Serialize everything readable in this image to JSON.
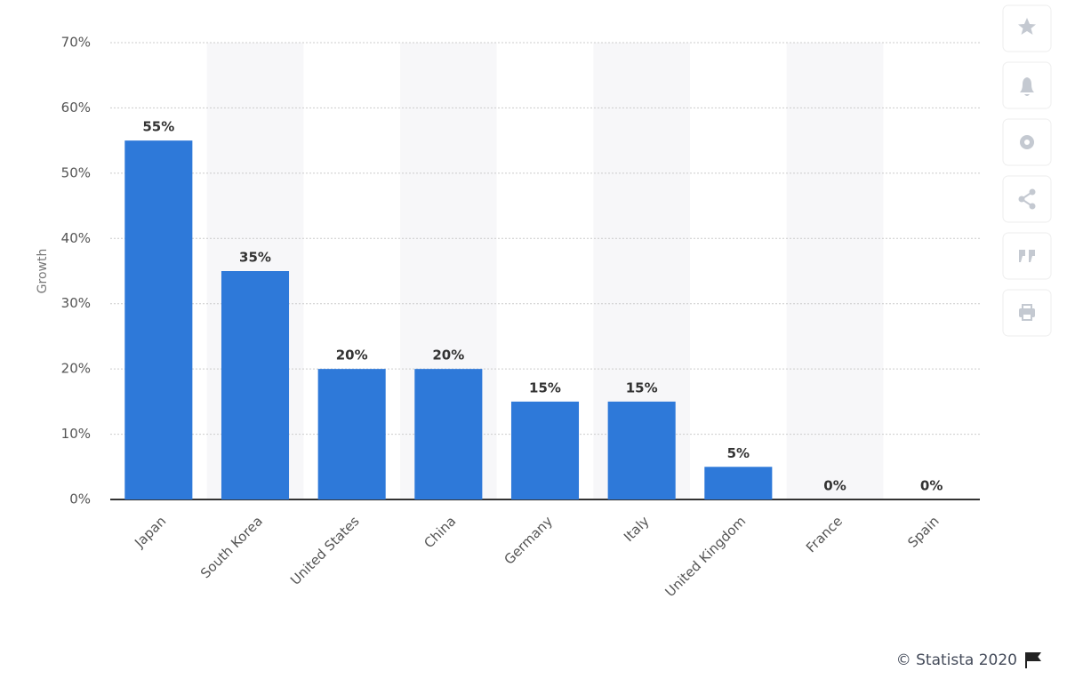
{
  "chart_data": {
    "type": "bar",
    "y_label": "Growth",
    "categories": [
      "Japan",
      "South Korea",
      "United States",
      "China",
      "Germany",
      "Italy",
      "United Kingdom",
      "France",
      "Spain"
    ],
    "values": [
      55,
      35,
      20,
      20,
      15,
      15,
      5,
      0,
      0
    ],
    "value_labels": [
      "55%",
      "35%",
      "20%",
      "20%",
      "15%",
      "15%",
      "5%",
      "0%",
      "0%"
    ],
    "color": "#2e79d9",
    "ylim": [
      0,
      70
    ],
    "yticks": [
      {
        "value": 0,
        "label": "0%"
      },
      {
        "value": 10,
        "label": "10%"
      },
      {
        "value": 20,
        "label": "20%"
      },
      {
        "value": 30,
        "label": "30%"
      },
      {
        "value": 40,
        "label": "40%"
      },
      {
        "value": 50,
        "label": "50%"
      },
      {
        "value": 60,
        "label": "60%"
      },
      {
        "value": 70,
        "label": "70%"
      }
    ],
    "grid": true,
    "credit": "© Statista 2020"
  }
}
